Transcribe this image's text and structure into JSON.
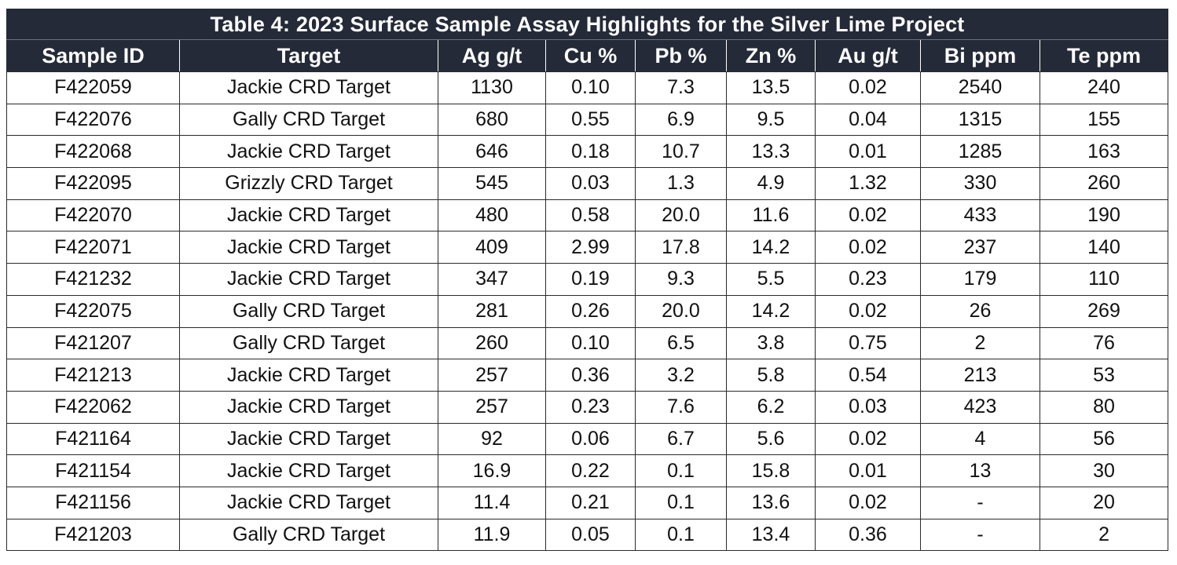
{
  "title": "Table 4: 2023 Surface Sample Assay Highlights for the Silver Lime Project",
  "columns": [
    "Sample ID",
    "Target",
    "Ag g/t",
    "Cu %",
    "Pb %",
    "Zn %",
    "Au g/t",
    "Bi ppm",
    "Te ppm"
  ],
  "rows": [
    [
      "F422059",
      "Jackie CRD Target",
      "1130",
      "0.10",
      "7.3",
      "13.5",
      "0.02",
      "2540",
      "240"
    ],
    [
      "F422076",
      "Gally CRD Target",
      "680",
      "0.55",
      "6.9",
      "9.5",
      "0.04",
      "1315",
      "155"
    ],
    [
      "F422068",
      "Jackie CRD Target",
      "646",
      "0.18",
      "10.7",
      "13.3",
      "0.01",
      "1285",
      "163"
    ],
    [
      "F422095",
      "Grizzly CRD Target",
      "545",
      "0.03",
      "1.3",
      "4.9",
      "1.32",
      "330",
      "260"
    ],
    [
      "F422070",
      "Jackie CRD Target",
      "480",
      "0.58",
      "20.0",
      "11.6",
      "0.02",
      "433",
      "190"
    ],
    [
      "F422071",
      "Jackie CRD Target",
      "409",
      "2.99",
      "17.8",
      "14.2",
      "0.02",
      "237",
      "140"
    ],
    [
      "F421232",
      "Jackie CRD Target",
      "347",
      "0.19",
      "9.3",
      "5.5",
      "0.23",
      "179",
      "110"
    ],
    [
      "F422075",
      "Gally CRD Target",
      "281",
      "0.26",
      "20.0",
      "14.2",
      "0.02",
      "26",
      "269"
    ],
    [
      "F421207",
      "Gally CRD Target",
      "260",
      "0.10",
      "6.5",
      "3.8",
      "0.75",
      "2",
      "76"
    ],
    [
      "F421213",
      "Jackie CRD Target",
      "257",
      "0.36",
      "3.2",
      "5.8",
      "0.54",
      "213",
      "53"
    ],
    [
      "F422062",
      "Jackie CRD Target",
      "257",
      "0.23",
      "7.6",
      "6.2",
      "0.03",
      "423",
      "80"
    ],
    [
      "F421164",
      "Jackie CRD Target",
      "92",
      "0.06",
      "6.7",
      "5.6",
      "0.02",
      "4",
      "56"
    ],
    [
      "F421154",
      "Jackie CRD Target",
      "16.9",
      "0.22",
      "0.1",
      "15.8",
      "0.01",
      "13",
      "30"
    ],
    [
      "F421156",
      "Jackie CRD Target",
      "11.4",
      "0.21",
      "0.1",
      "13.6",
      "0.02",
      "-",
      "20"
    ],
    [
      "F421203",
      "Gally CRD Target",
      "11.9",
      "0.05",
      "0.1",
      "13.4",
      "0.36",
      "-",
      "2"
    ]
  ],
  "colors": {
    "header_bg": "#242a37",
    "header_text": "#ffffff",
    "cell_border": "#2a2a2a"
  }
}
